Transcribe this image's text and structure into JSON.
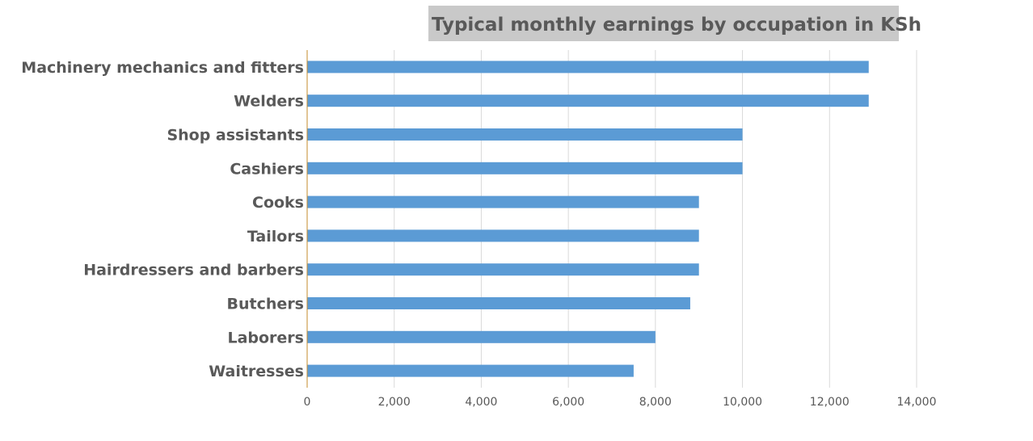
{
  "chart_data": {
    "type": "bar",
    "orientation": "horizontal",
    "title": "Typical monthly earnings by occupation in  KSh",
    "categories": [
      "Machinery mechanics and fitters",
      "Welders",
      "Shop assistants",
      "Cashiers",
      "Cooks",
      "Tailors",
      "Hairdressers and barbers",
      "Butchers",
      "Laborers",
      "Waitresses"
    ],
    "values": [
      12900,
      12900,
      10000,
      10000,
      9000,
      9000,
      9000,
      8800,
      8000,
      7500
    ],
    "xlabel": "",
    "ylabel": "",
    "xlim": [
      0,
      14000
    ],
    "x_ticks": [
      0,
      2000,
      4000,
      6000,
      8000,
      10000,
      12000,
      14000
    ],
    "x_tick_labels": [
      "0",
      "2,000",
      "4,000",
      "6,000",
      "8,000",
      "10,000",
      "12,000",
      "14,000"
    ],
    "grid": "vertical",
    "legend": "none",
    "bar_color": "#5b9bd5",
    "axis_color": "#c58b2b",
    "title_background": "#c9c9c9"
  }
}
